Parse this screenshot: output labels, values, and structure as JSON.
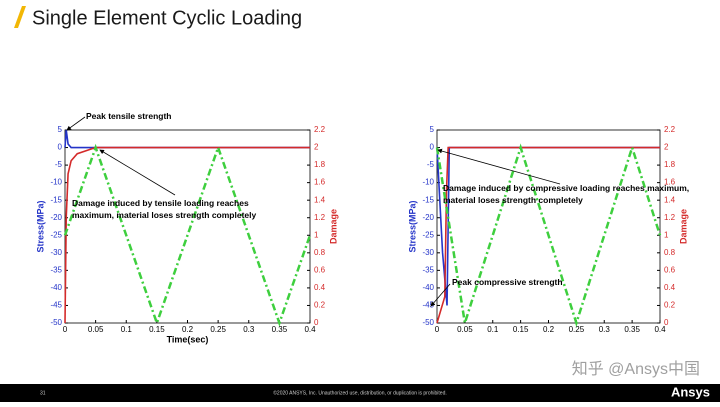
{
  "title": "Single Element Cyclic Loading",
  "footer": {
    "page": "31",
    "copyright": "©2020 ANSYS, Inc. Unauthorized use, distribution, or duplication is prohibited.",
    "logo": "Ansys"
  },
  "watermark": "知乎 @Ansys中国",
  "chart_data": [
    {
      "type": "line",
      "xlabel": "Time(sec)",
      "ylabel": "Stress(MPa)",
      "y2label": "Damage",
      "xlim": [
        0,
        0.4
      ],
      "xticks": [
        0,
        0.05,
        0.1,
        0.15,
        0.2,
        0.25,
        0.3,
        0.35,
        0.4
      ],
      "ylim": [
        -50,
        5
      ],
      "yticks": [
        -50,
        -45,
        -40,
        -35,
        -30,
        -25,
        -20,
        -15,
        -10,
        -5,
        0,
        5
      ],
      "y2lim": [
        0,
        2.2
      ],
      "y2ticks": [
        0,
        0.2,
        0.4,
        0.6,
        0.8,
        1,
        1.2,
        1.4,
        1.6,
        1.8,
        2,
        2.2
      ],
      "series": [
        {
          "color": "#2434c8",
          "x": [
            0,
            0.002,
            0.005,
            0.01,
            0.4
          ],
          "values": [
            0,
            5,
            1,
            0,
            0
          ]
        },
        {
          "color": "#d42a2a",
          "axis": "y2",
          "x": [
            0,
            0.002,
            0.005,
            0.01,
            0.02,
            0.05,
            0.4
          ],
          "values": [
            0,
            1.2,
            1.7,
            1.85,
            1.93,
            2,
            2
          ]
        },
        {
          "color": "#3ecf3e",
          "dashed": true,
          "x": [
            0,
            0.05,
            0.15,
            0.25,
            0.35,
            0.4
          ],
          "values": [
            -25,
            0,
            -50,
            0,
            -50,
            -25
          ]
        }
      ],
      "annotations": [
        "Peak tensile strength",
        "Damage induced by tensile loading reaches maximum, material loses strength completely"
      ]
    },
    {
      "type": "line",
      "ylabel": "Stress(MPa)",
      "y2label": "Damage",
      "xlim": [
        0,
        0.4
      ],
      "xticks": [
        0,
        0.05,
        0.1,
        0.15,
        0.2,
        0.25,
        0.3,
        0.35,
        0.4
      ],
      "ylim": [
        -50,
        5
      ],
      "yticks": [
        -50,
        -45,
        -40,
        -35,
        -30,
        -25,
        -20,
        -15,
        -10,
        -5,
        0,
        5
      ],
      "y2lim": [
        0,
        2.2
      ],
      "y2ticks": [
        0,
        0.2,
        0.4,
        0.6,
        0.8,
        1,
        1.2,
        1.4,
        1.6,
        1.8,
        2,
        2.2
      ],
      "series": [
        {
          "color": "#2434c8",
          "x": [
            0,
            0.01,
            0.018,
            0.022,
            0.4
          ],
          "values": [
            0,
            -30,
            -45,
            0,
            0
          ]
        },
        {
          "color": "#d42a2a",
          "axis": "y2",
          "x": [
            0,
            0.014,
            0.017,
            0.02,
            0.4
          ],
          "values": [
            0,
            0.3,
            1.5,
            2,
            2
          ]
        },
        {
          "color": "#3ecf3e",
          "dashed": true,
          "x": [
            0,
            0.05,
            0.15,
            0.25,
            0.35,
            0.4
          ],
          "values": [
            0,
            -50,
            0,
            -50,
            0,
            -25
          ]
        }
      ],
      "annotations": [
        "Damage induced by compressive loading reaches maximum, material loses strength completely",
        "Peak compressive strength"
      ]
    }
  ]
}
